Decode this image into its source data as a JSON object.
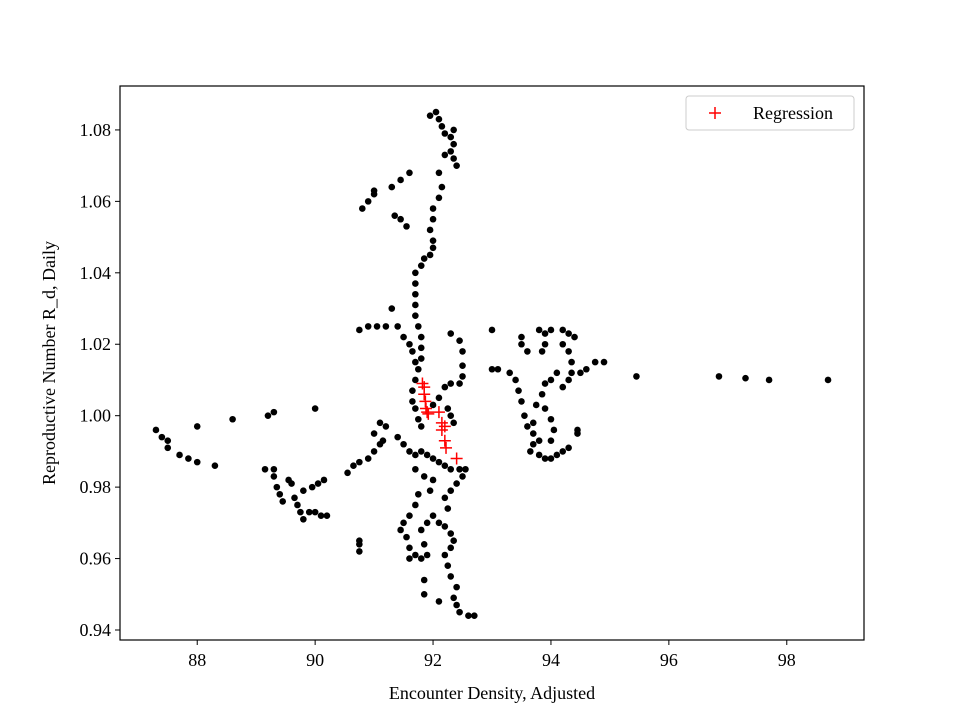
{
  "chart_data": {
    "type": "scatter",
    "xlabel": "Encounter Density, Adjusted",
    "ylabel": "Reproductive Number R_d, Daily",
    "xlim": [
      86.69,
      99.31
    ],
    "ylim": [
      0.9372,
      1.0923
    ],
    "xticks": [
      88,
      90,
      92,
      94,
      96,
      98
    ],
    "yticks": [
      0.94,
      0.96,
      0.98,
      {
        "value": 1,
        "label": "1.00"
      },
      1.02,
      1.04,
      1.06,
      1.08
    ],
    "legend": "upper right",
    "series": [
      {
        "color": "#000000",
        "marker": "o",
        "x": [
          87.3,
          87.4,
          87.5,
          87.5,
          87.7,
          87.85,
          88.0,
          88.3,
          88.0,
          88.6,
          89.2,
          89.3,
          90.0,
          89.15,
          89.3,
          89.3,
          89.35,
          89.4,
          89.45,
          89.55,
          89.6,
          89.65,
          89.7,
          89.75,
          89.8,
          89.8,
          89.9,
          89.95,
          90.0,
          90.05,
          90.1,
          90.15,
          90.2,
          90.55,
          90.65,
          90.75,
          90.9,
          91.0,
          91.1,
          90.75,
          90.75,
          90.75,
          90.8,
          90.9,
          91.0,
          91.0,
          91.3,
          91.45,
          91.6,
          91.35,
          91.45,
          91.55,
          90.75,
          90.9,
          91.05,
          91.2,
          91.3,
          91.4,
          91.5,
          91.6,
          91.65,
          91.7,
          91.95,
          92.05,
          92.1,
          92.15,
          92.2,
          92.3,
          92.35,
          92.35,
          92.3,
          92.2,
          92.35,
          92.4,
          92.1,
          92.15,
          92.1,
          92.0,
          92.0,
          91.95,
          92.0,
          92.0,
          91.95,
          91.85,
          91.8,
          91.7,
          91.7,
          91.7,
          91.7,
          91.7,
          91.75,
          91.8,
          91.8,
          91.8,
          91.75,
          91.7,
          91.65,
          91.65,
          91.7,
          91.75,
          91.8,
          92.3,
          92.45,
          92.5,
          92.5,
          92.5,
          92.45,
          92.3,
          92.2,
          92.1,
          92.0,
          92.25,
          92.3,
          92.35,
          91.1,
          91.2,
          91.0,
          91.15,
          91.4,
          91.5,
          91.6,
          91.7,
          91.8,
          91.9,
          92.0,
          92.1,
          92.2,
          92.3,
          92.45,
          92.55,
          92.5,
          92.4,
          92.0,
          91.95,
          91.85,
          91.7,
          91.75,
          91.7,
          91.6,
          91.5,
          91.45,
          91.55,
          91.6,
          91.6,
          91.7,
          91.8,
          91.9,
          91.85,
          91.8,
          91.9,
          92.0,
          92.1,
          92.2,
          92.3,
          92.35,
          92.3,
          92.2,
          92.25,
          92.3,
          92.4,
          92.35,
          92.4,
          92.45,
          92.6,
          92.7,
          92.1,
          91.85,
          91.85,
          92.2,
          92.3,
          92.25,
          93.0,
          93.0,
          93.1,
          93.3,
          93.4,
          93.45,
          93.5,
          93.55,
          93.6,
          93.7,
          93.7,
          93.75,
          93.85,
          93.9,
          94.0,
          94.05,
          94.0,
          93.8,
          93.65,
          93.7,
          93.8,
          93.9,
          94.0,
          94.1,
          94.2,
          94.3,
          94.45,
          94.45,
          93.5,
          93.5,
          93.6,
          93.8,
          93.9,
          93.9,
          93.85,
          94.0,
          94.2,
          94.3,
          94.4,
          94.2,
          94.3,
          94.35,
          94.35,
          94.3,
          94.2,
          94.0,
          93.9,
          94.1,
          94.5,
          94.6,
          94.75,
          94.9,
          95.45,
          96.85,
          97.3,
          97.7,
          98.7
        ],
        "values": [
          0.996,
          0.994,
          0.993,
          0.991,
          0.989,
          0.988,
          0.987,
          0.986,
          0.997,
          0.999,
          1.0,
          1.001,
          1.002,
          0.985,
          0.985,
          0.983,
          0.98,
          0.978,
          0.976,
          0.982,
          0.981,
          0.977,
          0.975,
          0.973,
          0.971,
          0.979,
          0.973,
          0.98,
          0.973,
          0.981,
          0.972,
          0.982,
          0.972,
          0.984,
          0.986,
          0.987,
          0.988,
          0.99,
          0.992,
          0.962,
          0.964,
          0.965,
          1.058,
          1.06,
          1.062,
          1.063,
          1.064,
          1.066,
          1.068,
          1.056,
          1.055,
          1.053,
          1.024,
          1.025,
          1.025,
          1.025,
          1.03,
          1.025,
          1.022,
          1.02,
          1.018,
          1.015,
          1.084,
          1.085,
          1.083,
          1.081,
          1.079,
          1.078,
          1.08,
          1.076,
          1.074,
          1.073,
          1.072,
          1.07,
          1.068,
          1.064,
          1.061,
          1.058,
          1.055,
          1.052,
          1.049,
          1.047,
          1.045,
          1.044,
          1.042,
          1.04,
          1.037,
          1.034,
          1.031,
          1.028,
          1.025,
          1.022,
          1.019,
          1.016,
          1.013,
          1.01,
          1.007,
          1.004,
          1.002,
          0.999,
          0.997,
          1.023,
          1.021,
          1.018,
          1.014,
          1.011,
          1.009,
          1.009,
          1.008,
          1.005,
          1.003,
          1.002,
          1.0,
          0.998,
          0.998,
          0.997,
          0.995,
          0.993,
          0.994,
          0.992,
          0.99,
          0.989,
          0.99,
          0.989,
          0.988,
          0.987,
          0.986,
          0.985,
          0.985,
          0.985,
          0.983,
          0.981,
          0.982,
          0.979,
          0.983,
          0.985,
          0.978,
          0.975,
          0.972,
          0.97,
          0.968,
          0.966,
          0.963,
          0.96,
          0.961,
          0.96,
          0.961,
          0.964,
          0.968,
          0.97,
          0.972,
          0.97,
          0.969,
          0.967,
          0.965,
          0.963,
          0.961,
          0.958,
          0.955,
          0.952,
          0.949,
          0.947,
          0.945,
          0.944,
          0.944,
          0.948,
          0.95,
          0.954,
          0.977,
          0.979,
          0.974,
          1.024,
          1.013,
          1.013,
          1.012,
          1.01,
          1.007,
          1.004,
          1.0,
          0.997,
          0.995,
          0.998,
          1.003,
          1.006,
          1.002,
          0.999,
          0.996,
          0.993,
          0.993,
          0.99,
          0.992,
          0.989,
          0.988,
          0.988,
          0.989,
          0.99,
          0.991,
          0.995,
          0.996,
          1.022,
          1.02,
          1.018,
          1.024,
          1.023,
          1.02,
          1.018,
          1.024,
          1.024,
          1.023,
          1.022,
          1.02,
          1.018,
          1.015,
          1.012,
          1.01,
          1.008,
          1.01,
          1.009,
          1.012,
          1.012,
          1.013,
          1.015,
          1.015,
          1.011,
          1.011,
          1.0105,
          1.01,
          1.01
        ]
      },
      {
        "name": "Regression",
        "color": "#ff0000",
        "marker": "+",
        "x": [
          91.82,
          91.85,
          91.85,
          91.87,
          91.88,
          91.9,
          91.92,
          92.1,
          92.15,
          92.2,
          92.15,
          92.2,
          92.22,
          92.4
        ],
        "values": [
          1.009,
          1.008,
          1.006,
          1.004,
          1.002,
          1.001,
          1.0005,
          1.001,
          0.998,
          0.997,
          0.996,
          0.993,
          0.991,
          0.988
        ]
      }
    ]
  }
}
